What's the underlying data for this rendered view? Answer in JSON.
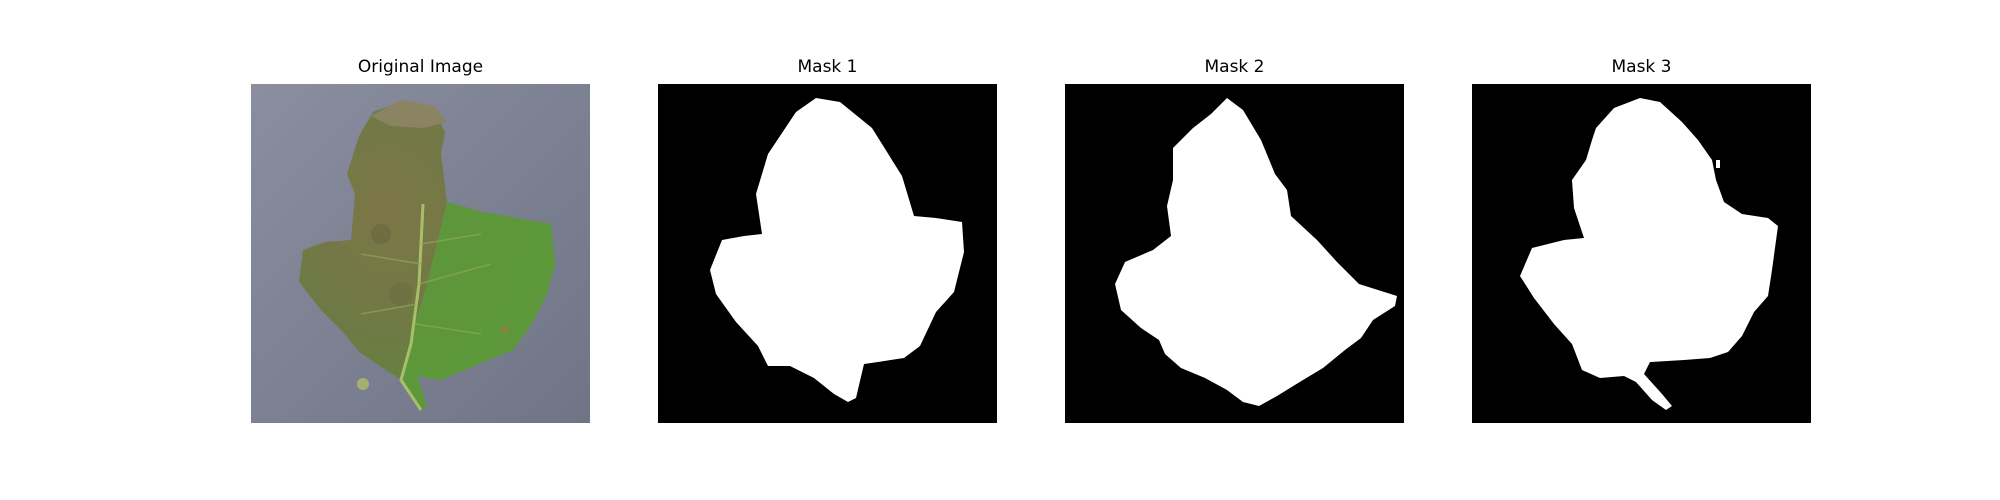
{
  "panels": [
    {
      "title": "Original Image",
      "kind": "photo"
    },
    {
      "title": "Mask 1",
      "kind": "mask"
    },
    {
      "title": "Mask 2",
      "kind": "mask"
    },
    {
      "title": "Mask 3",
      "kind": "mask"
    }
  ],
  "colors": {
    "background": "#ffffff",
    "mask_background": "#000000",
    "mask_foreground": "#ffffff",
    "photo_backdrop": "#7f8496",
    "leaf_green": "#5f9a3c",
    "leaf_diseased": "#7c7a4c"
  }
}
